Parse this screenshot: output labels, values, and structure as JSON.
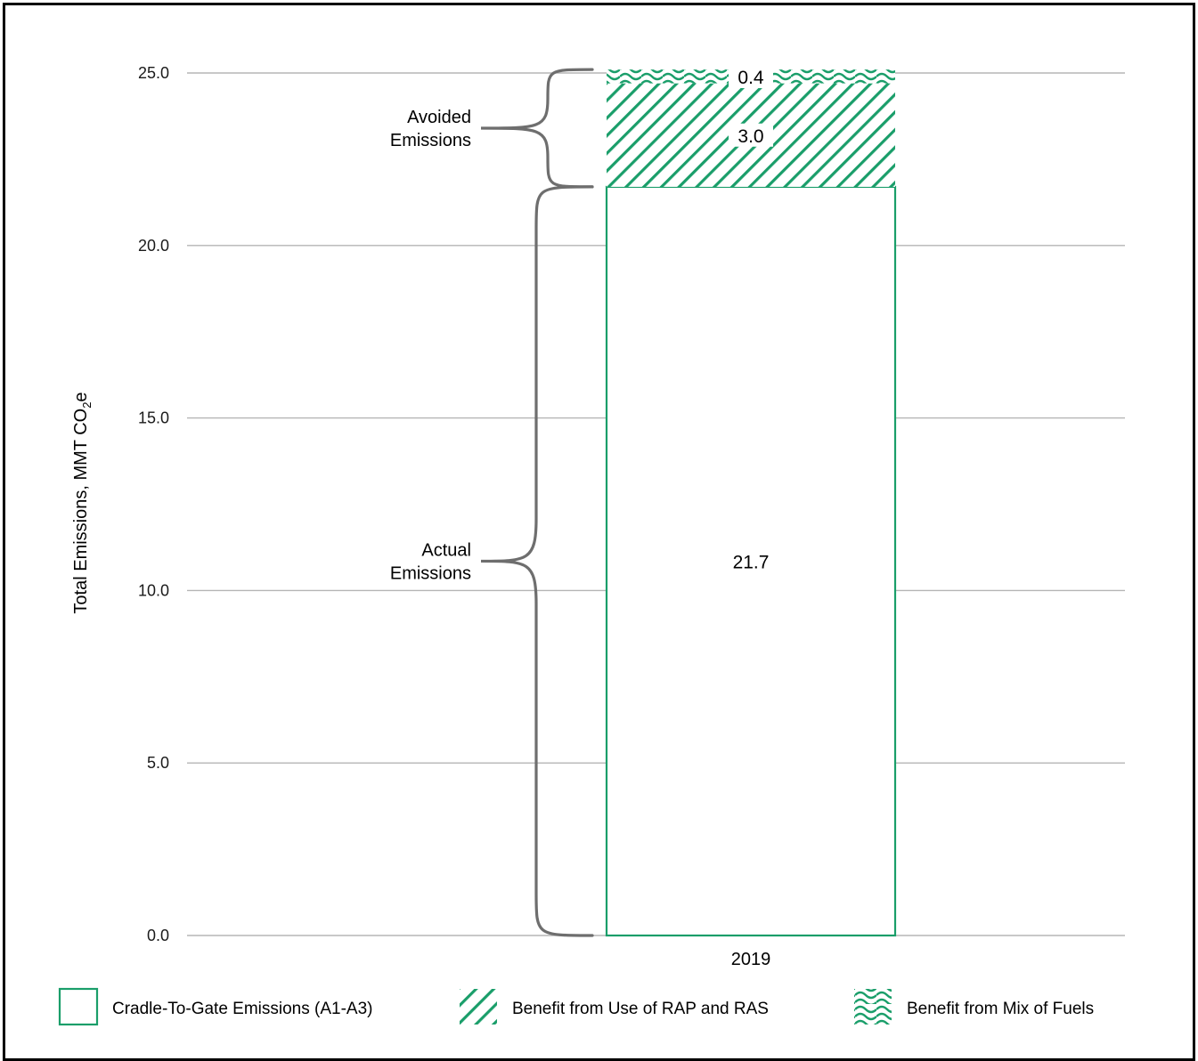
{
  "chart_data": {
    "type": "bar",
    "stacked": true,
    "categories": [
      "2019"
    ],
    "series": [
      {
        "name": "Cradle-To-Gate Emissions (A1-A3)",
        "values": [
          21.7
        ],
        "label": "21.7",
        "style": "outline",
        "color": "#1a9e6a"
      },
      {
        "name": "Benefit from Use of RAP and RAS",
        "values": [
          3.0
        ],
        "label": "3.0",
        "style": "diagonal-hatch",
        "color": "#1a9e6a"
      },
      {
        "name": "Benefit from Mix of Fuels",
        "values": [
          0.4
        ],
        "label": "0.4",
        "style": "swirl-hatch",
        "color": "#1a9e6a"
      }
    ],
    "ylabel": "Total Emissions, MMT CO2e",
    "ylabel_parts": {
      "main": "Total Emissions, MMT CO",
      "sub": "2",
      "tail": "e"
    },
    "ylim": [
      0,
      25
    ],
    "yticks": [
      0,
      5,
      10,
      15,
      20,
      25
    ],
    "ytick_labels": [
      "0.0",
      "5.0",
      "10.0",
      "15.0",
      "20.0",
      "25.0"
    ],
    "grid": true,
    "legend_position": "bottom",
    "annotations": [
      {
        "text_lines": [
          "Avoided",
          "Emissions"
        ],
        "from": 21.7,
        "to": 25.1
      },
      {
        "text_lines": [
          "Actual",
          "Emissions"
        ],
        "from": 0,
        "to": 21.7
      }
    ],
    "colors": {
      "accent": "#1a9e6a",
      "grid": "#b5b5b5",
      "brace": "#6e6e6e"
    }
  }
}
